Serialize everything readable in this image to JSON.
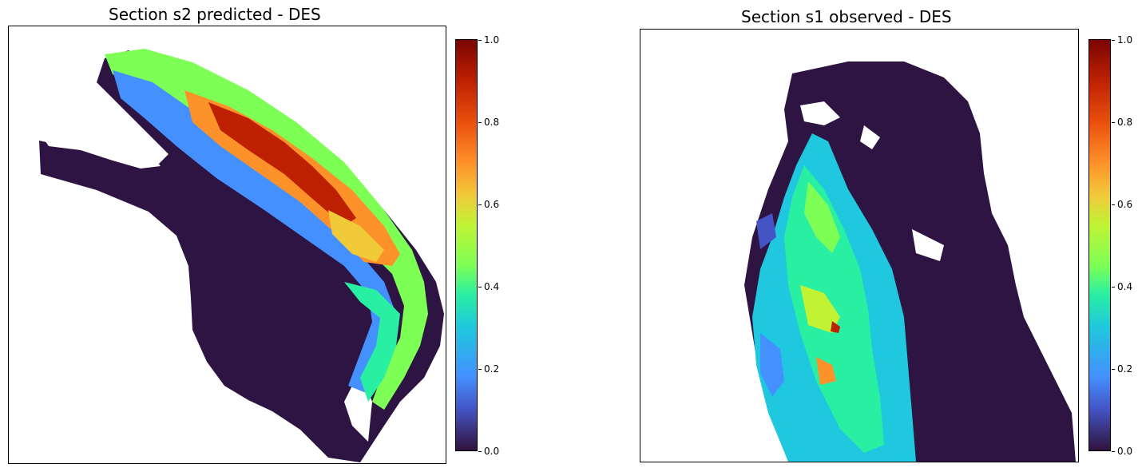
{
  "panels": [
    {
      "title": "Section s2 predicted - DES",
      "colorbar": {
        "ticks": [
          "1.0",
          "0.8",
          "0.6",
          "0.4",
          "0.2",
          "0.0"
        ]
      }
    },
    {
      "title": "Section s1 observed - DES",
      "colorbar": {
        "ticks": [
          "1.0",
          "0.8",
          "0.6",
          "0.4",
          "0.2",
          "0.0"
        ]
      }
    }
  ],
  "colormap": {
    "name": "turbo",
    "low": "#30123b",
    "mid": "#29efa2",
    "high": "#7a0403",
    "background_tissue": "#2e1442"
  }
}
